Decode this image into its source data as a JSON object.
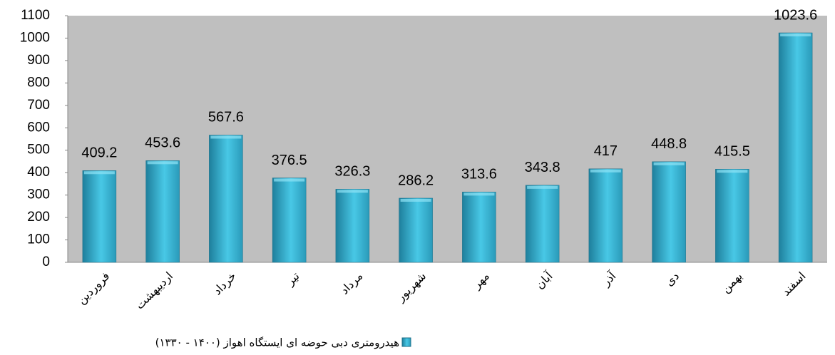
{
  "chart_data": {
    "type": "bar",
    "categories": [
      "فروردین",
      "اردیبهشت",
      "خرداد",
      "تیر",
      "مرداد",
      "شهریور",
      "مهر",
      "آبان",
      "آذر",
      "دی",
      "بهمن",
      "اسفند"
    ],
    "series": [
      {
        "name": "هیدرومتری دبی حوضه ای ایستگاه اهواز (۱۴۰۰ - ۱۳۳۰)",
        "color": "#3bb8d8",
        "values": [
          409.2,
          453.6,
          567.6,
          376.5,
          326.3,
          286.2,
          313.6,
          343.8,
          417,
          448.8,
          415.5,
          1023.6
        ]
      }
    ],
    "ylim": [
      0,
      1100
    ],
    "yticks": [
      0,
      100,
      200,
      300,
      400,
      500,
      600,
      700,
      800,
      900,
      1000,
      1100
    ],
    "legend": "bottom"
  }
}
